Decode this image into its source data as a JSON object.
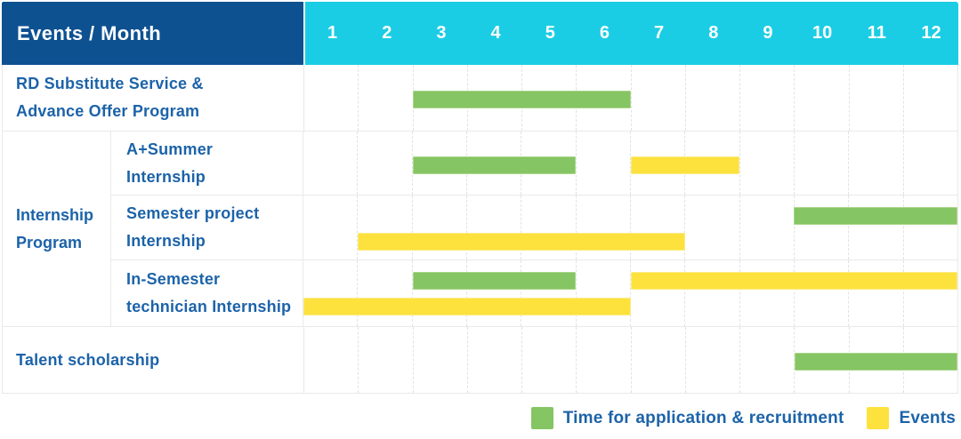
{
  "header": {
    "title": "Events / Month",
    "months": [
      "1",
      "2",
      "3",
      "4",
      "5",
      "6",
      "7",
      "8",
      "9",
      "10",
      "11",
      "12"
    ]
  },
  "colors": {
    "header_bg": "#0E5191",
    "months_header_bg": "#1BCDE4",
    "application_green": "#85C563",
    "event_yellow": "#FDE13D",
    "label_text_blue": "#1C63A9",
    "header_text": "#FFFFFF",
    "grid_line": "#E9E9E9"
  },
  "table": {
    "groups": [
      {
        "label": "",
        "items": [
          {
            "label_lines": [
              "RD Substitute Service &",
              "Advance Offer Program"
            ],
            "lines": [
              [
                {
                  "type": "application",
                  "start": 3,
                  "end": 6
                }
              ]
            ]
          }
        ]
      },
      {
        "label": "Internship Program",
        "label_lines": [
          "Internship",
          "Program"
        ],
        "items": [
          {
            "label_lines": [
              "A+Summer",
              "Internship"
            ],
            "lines": [
              [
                {
                  "type": "application",
                  "start": 3,
                  "end": 5
                },
                {
                  "type": "event",
                  "start": 7,
                  "end": 8
                }
              ]
            ]
          },
          {
            "label_lines": [
              "Semester project",
              "Internship"
            ],
            "lines": [
              [
                {
                  "type": "application",
                  "start": 10,
                  "end": 12
                }
              ],
              [
                {
                  "type": "event",
                  "start": 2,
                  "end": 7
                }
              ]
            ]
          },
          {
            "label_lines": [
              "In-Semester",
              "technician Internship"
            ],
            "lines": [
              [
                {
                  "type": "application",
                  "start": 3,
                  "end": 5
                },
                {
                  "type": "event",
                  "start": 7,
                  "end": 12
                }
              ],
              [
                {
                  "type": "event",
                  "start": 1,
                  "end": 6
                }
              ]
            ]
          }
        ]
      },
      {
        "label": "",
        "items": [
          {
            "label_lines": [
              "Talent scholarship"
            ],
            "lines": [
              [
                {
                  "type": "application",
                  "start": 10,
                  "end": 12
                }
              ]
            ]
          }
        ]
      }
    ]
  },
  "legend": [
    {
      "type": "application",
      "label": "Time for application & recruitment"
    },
    {
      "type": "event",
      "label": "Events"
    }
  ],
  "chart_data": {
    "type": "gantt",
    "title": "Events / Month",
    "x_categories": [
      1,
      2,
      3,
      4,
      5,
      6,
      7,
      8,
      9,
      10,
      11,
      12
    ],
    "x_axis_label": "Month",
    "legend": [
      {
        "name": "Time for application & recruitment",
        "color": "#85C563"
      },
      {
        "name": "Events",
        "color": "#FDE13D"
      }
    ],
    "rows": [
      {
        "group": null,
        "label": "RD Substitute Service & Advance Offer Program",
        "spans": [
          {
            "series": "Time for application & recruitment",
            "start_month": 3,
            "end_month": 6
          }
        ]
      },
      {
        "group": "Internship Program",
        "label": "A+Summer Internship",
        "spans": [
          {
            "series": "Time for application & recruitment",
            "start_month": 3,
            "end_month": 5
          },
          {
            "series": "Events",
            "start_month": 7,
            "end_month": 8
          }
        ]
      },
      {
        "group": "Internship Program",
        "label": "Semester project Internship",
        "spans": [
          {
            "series": "Time for application & recruitment",
            "start_month": 10,
            "end_month": 12
          },
          {
            "series": "Events",
            "start_month": 2,
            "end_month": 7
          }
        ]
      },
      {
        "group": "Internship Program",
        "label": "In-Semester technician Internship",
        "spans": [
          {
            "series": "Time for application & recruitment",
            "start_month": 3,
            "end_month": 5
          },
          {
            "series": "Events",
            "start_month": 7,
            "end_month": 12
          },
          {
            "series": "Events",
            "start_month": 1,
            "end_month": 6
          }
        ]
      },
      {
        "group": null,
        "label": "Talent scholarship",
        "spans": [
          {
            "series": "Time for application & recruitment",
            "start_month": 10,
            "end_month": 12
          }
        ]
      }
    ]
  }
}
